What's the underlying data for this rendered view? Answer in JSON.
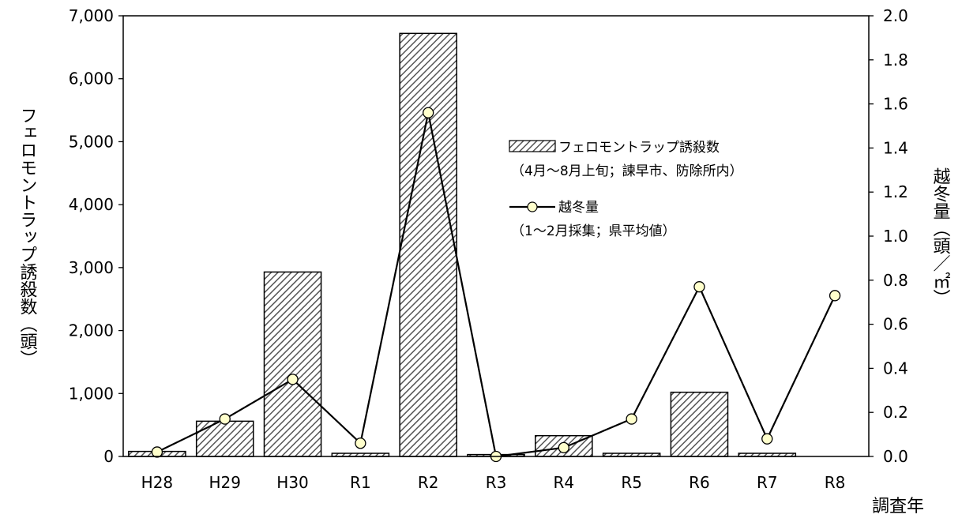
{
  "chart_data": {
    "type": "bar",
    "categories": [
      "H28",
      "H29",
      "H30",
      "R1",
      "R2",
      "R3",
      "R4",
      "R5",
      "R6",
      "R7",
      "R8"
    ],
    "series": [
      {
        "name": "フェロモントラップ誘殺数",
        "name_note": "（4月～8月上旬；諫早市、防除所内）",
        "type": "bar",
        "axis": "left",
        "values": [
          80,
          560,
          2930,
          50,
          6720,
          30,
          330,
          50,
          1020,
          50,
          null
        ]
      },
      {
        "name": "越冬量",
        "name_note": "（1～2月採集；県平均値）",
        "type": "line",
        "axis": "right",
        "values": [
          0.02,
          0.17,
          0.35,
          0.06,
          1.56,
          0.0,
          0.04,
          0.17,
          0.77,
          0.08,
          0.73
        ]
      }
    ],
    "xlabel": "調査年",
    "ylabel": "フェロモントラップ誘殺数（頭）",
    "y2label": "越冬量（頭／㎡）",
    "ylim": [
      0,
      7000
    ],
    "y2lim": [
      0,
      2.0
    ],
    "yticks": [
      "0",
      "1,000",
      "2,000",
      "3,000",
      "4,000",
      "5,000",
      "6,000",
      "7,000"
    ],
    "y2ticks": [
      "0.0",
      "0.2",
      "0.4",
      "0.6",
      "0.8",
      "1.0",
      "1.2",
      "1.4",
      "1.6",
      "1.8",
      "2.0"
    ],
    "grid": false,
    "legend": "upper-right inside plot",
    "colors": {
      "bar_fill_base": "#ffffff",
      "bar_hatch": "#555555",
      "bar_edge": "#000000",
      "line": "#000000",
      "marker_fill": "#ffffcc",
      "marker_edge": "#000000"
    }
  }
}
